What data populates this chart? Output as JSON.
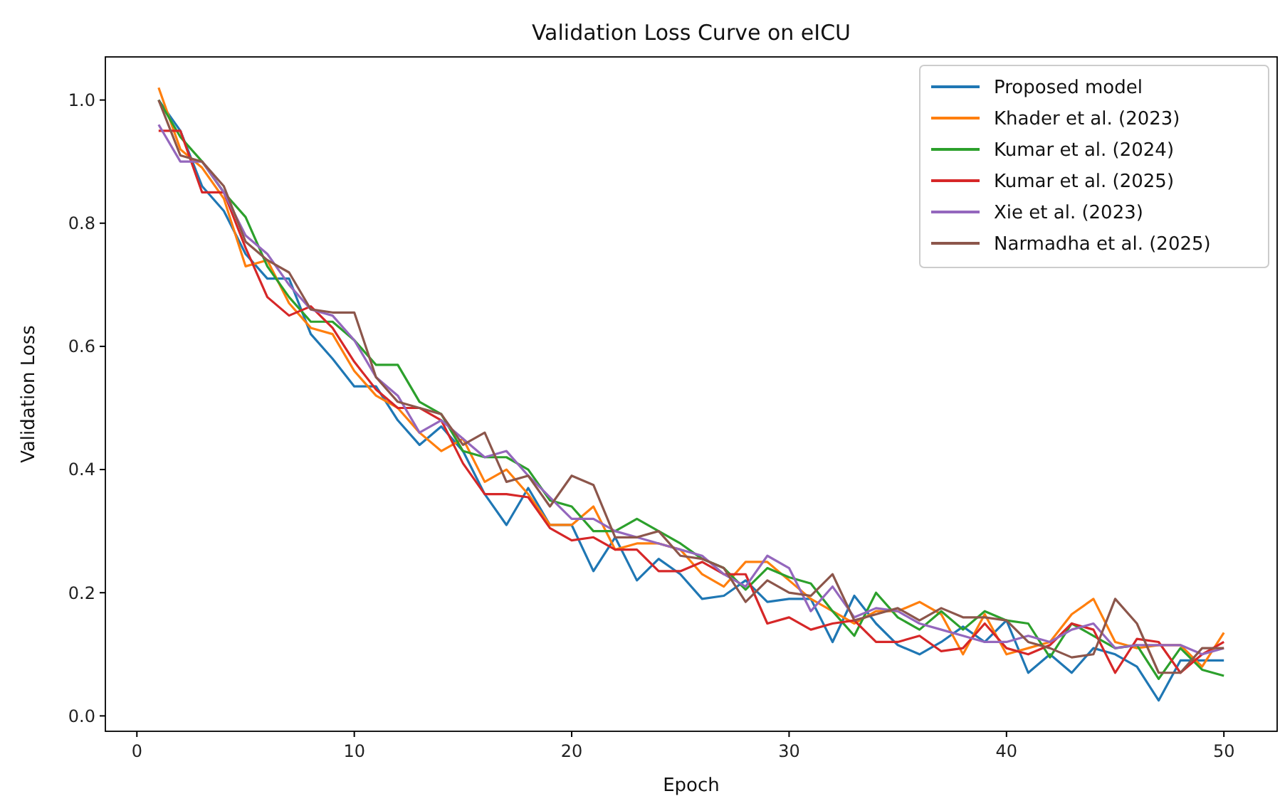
{
  "chart_data": {
    "type": "line",
    "title": "Validation Loss Curve on eICU",
    "xlabel": "Epoch",
    "ylabel": "Validation Loss",
    "x": [
      1,
      2,
      3,
      4,
      5,
      6,
      7,
      8,
      9,
      10,
      11,
      12,
      13,
      14,
      15,
      16,
      17,
      18,
      19,
      20,
      21,
      22,
      23,
      24,
      25,
      26,
      27,
      28,
      29,
      30,
      31,
      32,
      33,
      34,
      35,
      36,
      37,
      38,
      39,
      40,
      41,
      42,
      43,
      44,
      45,
      46,
      47,
      48,
      49,
      50
    ],
    "xlim": [
      -1.45,
      52.45
    ],
    "ylim": [
      -0.025,
      1.07
    ],
    "xticks": [
      0,
      10,
      20,
      30,
      40,
      50
    ],
    "yticks": [
      {
        "value": 0,
        "label": "0.0"
      },
      {
        "value": 0.2,
        "label": "0.2"
      },
      {
        "value": 0.4,
        "label": "0.4"
      },
      {
        "value": 0.6,
        "label": "0.6"
      },
      {
        "value": 0.8,
        "label": "0.8"
      },
      {
        "value": 1,
        "label": "1.0"
      }
    ],
    "legend": "top right",
    "grid": false,
    "series": [
      {
        "name": "Proposed model",
        "color": "#1f77b4",
        "values": [
          1.0,
          0.95,
          0.86,
          0.82,
          0.75,
          0.71,
          0.71,
          0.62,
          0.58,
          0.535,
          0.535,
          0.48,
          0.44,
          0.47,
          0.43,
          0.36,
          0.31,
          0.37,
          0.31,
          0.31,
          0.235,
          0.29,
          0.22,
          0.255,
          0.23,
          0.19,
          0.195,
          0.22,
          0.185,
          0.19,
          0.19,
          0.12,
          0.195,
          0.15,
          0.115,
          0.1,
          0.12,
          0.145,
          0.12,
          0.155,
          0.07,
          0.1,
          0.07,
          0.11,
          0.1,
          0.08,
          0.025,
          0.09,
          0.09,
          0.09
        ]
      },
      {
        "name": "Khader et al. (2023)",
        "color": "#ff7f0e",
        "values": [
          1.02,
          0.92,
          0.89,
          0.84,
          0.73,
          0.74,
          0.67,
          0.63,
          0.62,
          0.56,
          0.52,
          0.5,
          0.46,
          0.43,
          0.45,
          0.38,
          0.4,
          0.36,
          0.31,
          0.31,
          0.34,
          0.27,
          0.28,
          0.28,
          0.27,
          0.23,
          0.21,
          0.25,
          0.25,
          0.22,
          0.19,
          0.17,
          0.15,
          0.17,
          0.17,
          0.185,
          0.165,
          0.1,
          0.165,
          0.1,
          0.11,
          0.12,
          0.165,
          0.19,
          0.12,
          0.11,
          0.115,
          0.115,
          0.08,
          0.135
        ]
      },
      {
        "name": "Kumar et al. (2024)",
        "color": "#2ca02c",
        "values": [
          1.0,
          0.94,
          0.9,
          0.85,
          0.81,
          0.73,
          0.68,
          0.64,
          0.64,
          0.61,
          0.57,
          0.57,
          0.51,
          0.49,
          0.43,
          0.42,
          0.42,
          0.4,
          0.35,
          0.34,
          0.3,
          0.3,
          0.32,
          0.3,
          0.28,
          0.255,
          0.24,
          0.205,
          0.24,
          0.225,
          0.215,
          0.17,
          0.13,
          0.2,
          0.16,
          0.14,
          0.17,
          0.14,
          0.17,
          0.155,
          0.15,
          0.095,
          0.15,
          0.13,
          0.11,
          0.115,
          0.06,
          0.11,
          0.075,
          0.065
        ]
      },
      {
        "name": "Kumar et al. (2025)",
        "color": "#d62728",
        "values": [
          0.95,
          0.95,
          0.85,
          0.85,
          0.76,
          0.68,
          0.65,
          0.665,
          0.63,
          0.575,
          0.53,
          0.5,
          0.5,
          0.48,
          0.41,
          0.36,
          0.36,
          0.355,
          0.305,
          0.285,
          0.29,
          0.27,
          0.27,
          0.235,
          0.235,
          0.25,
          0.23,
          0.23,
          0.15,
          0.16,
          0.14,
          0.15,
          0.155,
          0.12,
          0.12,
          0.13,
          0.105,
          0.11,
          0.15,
          0.11,
          0.1,
          0.115,
          0.15,
          0.14,
          0.07,
          0.125,
          0.12,
          0.07,
          0.1,
          0.12
        ]
      },
      {
        "name": "Xie et al. (2023)",
        "color": "#9467bd",
        "values": [
          0.96,
          0.9,
          0.9,
          0.85,
          0.78,
          0.75,
          0.7,
          0.66,
          0.65,
          0.61,
          0.55,
          0.52,
          0.46,
          0.48,
          0.45,
          0.42,
          0.43,
          0.39,
          0.355,
          0.32,
          0.32,
          0.3,
          0.29,
          0.28,
          0.27,
          0.26,
          0.23,
          0.21,
          0.26,
          0.24,
          0.17,
          0.21,
          0.16,
          0.175,
          0.17,
          0.15,
          0.14,
          0.13,
          0.12,
          0.12,
          0.13,
          0.12,
          0.14,
          0.15,
          0.11,
          0.115,
          0.115,
          0.115,
          0.1,
          0.11
        ]
      },
      {
        "name": "Narmadha et al. (2025)",
        "color": "#8c564b",
        "values": [
          1.0,
          0.91,
          0.9,
          0.86,
          0.77,
          0.74,
          0.72,
          0.66,
          0.655,
          0.655,
          0.55,
          0.51,
          0.5,
          0.49,
          0.44,
          0.46,
          0.38,
          0.39,
          0.34,
          0.39,
          0.375,
          0.29,
          0.29,
          0.3,
          0.26,
          0.255,
          0.24,
          0.185,
          0.22,
          0.2,
          0.195,
          0.23,
          0.155,
          0.165,
          0.175,
          0.155,
          0.175,
          0.16,
          0.16,
          0.155,
          0.12,
          0.11,
          0.095,
          0.1,
          0.19,
          0.15,
          0.07,
          0.07,
          0.11,
          0.11
        ]
      }
    ]
  }
}
